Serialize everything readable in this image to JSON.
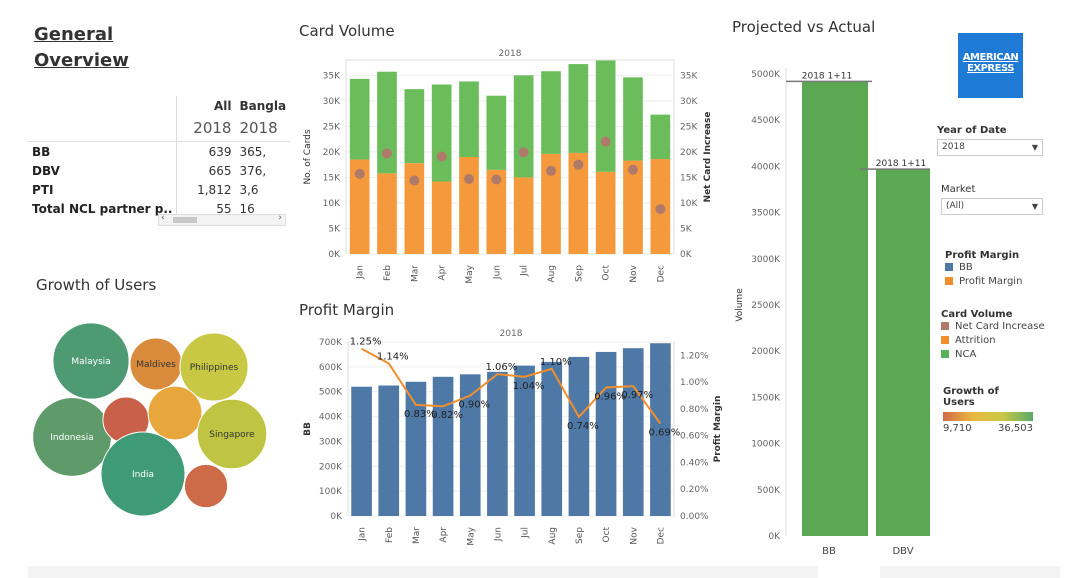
{
  "overview": {
    "title": "General Overview",
    "columns": [
      "All",
      "Bangla"
    ],
    "years": [
      "2018",
      "2018"
    ],
    "rows": [
      {
        "label": "BB",
        "all": "639",
        "bangla": "365,"
      },
      {
        "label": "DBV",
        "all": "665",
        "bangla": "376,"
      },
      {
        "label": "PTI",
        "all": "1,812",
        "bangla": "3,6"
      },
      {
        "label": "Total NCL partner p..",
        "all": "55",
        "bangla": "16"
      }
    ]
  },
  "filters": {
    "year_label": "Year of Date",
    "year_value": "2018",
    "market_label": "Market",
    "market_value": "(All)"
  },
  "legends": {
    "profit_margin_title": "Profit Margin",
    "profit_margin_items": [
      {
        "label": "BB",
        "color": "#4e79a7"
      },
      {
        "label": "Profit Margin",
        "color": "#f28e2b"
      }
    ],
    "card_volume_title": "Card Volume",
    "card_volume_items": [
      {
        "label": "Net Card Increase",
        "color": "#b07a6a"
      },
      {
        "label": "Attrition",
        "color": "#f28e2b"
      },
      {
        "label": "NCA",
        "color": "#59b25a"
      }
    ],
    "growth_title": "Growth of Users",
    "growth_min": "9,710",
    "growth_max": "36,503"
  },
  "logo": {
    "line1": "AMERICAN",
    "line2": "EXPRESS"
  },
  "chart_data": [
    {
      "type": "bar",
      "name": "card-volume",
      "title": "Card Volume",
      "header": "2018",
      "categories": [
        "Jan",
        "Feb",
        "Mar",
        "Apr",
        "May",
        "Jun",
        "Jul",
        "Aug",
        "Sep",
        "Oct",
        "Nov",
        "Dec"
      ],
      "series": [
        {
          "name": "Attrition",
          "values": [
            18500,
            15800,
            17800,
            14200,
            19000,
            16500,
            15000,
            19600,
            19800,
            16100,
            18300,
            18600
          ]
        },
        {
          "name": "NCA",
          "values": [
            15800,
            19900,
            14500,
            19000,
            14800,
            14500,
            20000,
            16200,
            17400,
            21800,
            16300,
            8700
          ]
        },
        {
          "name": "Net Card Increase",
          "values": [
            15700,
            19700,
            14400,
            19100,
            14700,
            14600,
            19900,
            16300,
            17500,
            22000,
            16500,
            8800
          ]
        }
      ],
      "ylabel": "No. of Cards",
      "y2label": "Net Card Increase",
      "ylim": [
        0,
        38000
      ],
      "yticks": [
        "0K",
        "5K",
        "10K",
        "15K",
        "20K",
        "25K",
        "30K",
        "35K"
      ],
      "y2ticks": [
        "0K",
        "5K",
        "10K",
        "15K",
        "20K",
        "25K",
        "30K",
        "35K"
      ]
    },
    {
      "type": "bar",
      "name": "profit-margin",
      "title": "Profit Margin",
      "header": "2018",
      "categories": [
        "Jan",
        "Feb",
        "Mar",
        "Apr",
        "May",
        "Jun",
        "Jul",
        "Aug",
        "Sep",
        "Oct",
        "Nov",
        "Dec"
      ],
      "series": [
        {
          "name": "BB",
          "values": [
            520000,
            525000,
            540000,
            560000,
            570000,
            580000,
            605000,
            620000,
            640000,
            660000,
            675000,
            695000
          ]
        },
        {
          "name": "Profit Margin",
          "values": [
            1.25,
            1.14,
            0.83,
            0.82,
            0.9,
            1.06,
            1.04,
            1.1,
            0.74,
            0.96,
            0.97,
            0.69
          ]
        }
      ],
      "point_labels": [
        "1.25%",
        "1.14%",
        "0.83%",
        "0.82%",
        "0.90%",
        "1.06%",
        "1.04%",
        "1.10%",
        "0.74%",
        "0.96%",
        "0.97%",
        "0.69%"
      ],
      "ylabel": "BB",
      "y2label": "Profit Margin",
      "ylim": [
        0,
        700000
      ],
      "y2lim": [
        0,
        1.3
      ],
      "yticks": [
        "0K",
        "100K",
        "200K",
        "300K",
        "400K",
        "500K",
        "600K",
        "700K"
      ],
      "y2ticks": [
        "0.00%",
        "0.20%",
        "0.40%",
        "0.60%",
        "0.80%",
        "1.00%",
        "1.20%"
      ]
    },
    {
      "type": "bar",
      "name": "projected-vs-actual",
      "title": "Projected vs Actual",
      "categories": [
        "BB",
        "DBV"
      ],
      "values": [
        4920000,
        3970000
      ],
      "reference_label": "2018 1+11",
      "ylabel": "Volume",
      "ylim": [
        0,
        5000000
      ],
      "yticks": [
        "0K",
        "500K",
        "1000K",
        "1500K",
        "2000K",
        "2500K",
        "3000K",
        "3500K",
        "4000K",
        "4500K",
        "5000K"
      ]
    },
    {
      "type": "bubble",
      "name": "growth-of-users",
      "title": "Growth of Users",
      "bubbles": [
        {
          "label": "Malaysia",
          "value": 30000,
          "color": "#4e9a72"
        },
        {
          "label": "Maldives",
          "value": 14000,
          "color": "#d98a3b"
        },
        {
          "label": "Philippines",
          "value": 24000,
          "color": "#c9c845"
        },
        {
          "label": "Indonesia",
          "value": 32000,
          "color": "#5e9a6a"
        },
        {
          "label": "",
          "value": 11000,
          "color": "#c8604a"
        },
        {
          "label": "",
          "value": 15000,
          "color": "#e8a73c"
        },
        {
          "label": "Singapore",
          "value": 25000,
          "color": "#bfc543"
        },
        {
          "label": "India",
          "value": 36503,
          "color": "#3f9a78"
        },
        {
          "label": "",
          "value": 9710,
          "color": "#cd6a48"
        }
      ]
    }
  ]
}
